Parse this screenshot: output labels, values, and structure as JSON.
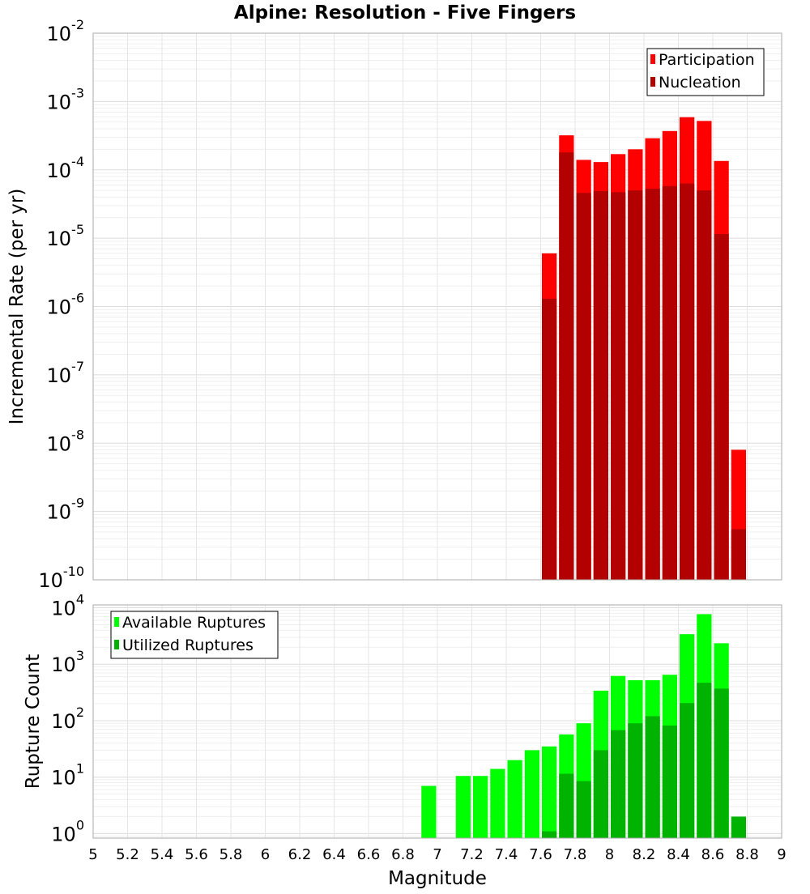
{
  "title": "Alpine: Resolution - Five Fingers",
  "xlabel": "Magnitude",
  "x_ticks": [
    "5",
    "5.2",
    "5.4",
    "5.6",
    "5.8",
    "6",
    "6.2",
    "6.4",
    "6.6",
    "6.8",
    "7",
    "7.2",
    "7.4",
    "7.6",
    "7.8",
    "8",
    "8.2",
    "8.4",
    "8.6",
    "8.8",
    "9"
  ],
  "chart_data": [
    {
      "type": "bar",
      "ylabel": "Incremental Rate (per yr)",
      "yscale": "log",
      "xlim": [
        5,
        9
      ],
      "ylim_exp": [
        -10,
        -2
      ],
      "y_tick_exponents": [
        "-10",
        "-9",
        "-8",
        "-7",
        "-6",
        "-5",
        "-4",
        "-3",
        "-2"
      ],
      "y_tick_base": "10",
      "bin_width": 0.1,
      "legend_position": "top-right",
      "grid": true,
      "categories": [
        7.65,
        7.75,
        7.85,
        7.95,
        8.05,
        8.15,
        8.25,
        8.35,
        8.45,
        8.55,
        8.65,
        8.75
      ],
      "series": [
        {
          "name": "Participation",
          "color": "#ff0000",
          "values": [
            6e-06,
            0.00032,
            0.00014,
            0.00013,
            0.00017,
            0.0002,
            0.00029,
            0.00037,
            0.00059,
            0.00052,
            0.000135,
            8e-09
          ]
        },
        {
          "name": "Nucleation",
          "color": "#b30000",
          "values": [
            1.3e-06,
            0.00018,
            4.6e-05,
            4.9e-05,
            4.7e-05,
            5e-05,
            5.3e-05,
            5.8e-05,
            6.3e-05,
            5e-05,
            1.15e-05,
            5.5e-10
          ]
        }
      ]
    },
    {
      "type": "bar",
      "ylabel": "Rupture Count",
      "yscale": "log",
      "xlim": [
        5,
        9
      ],
      "ylim_exp": [
        -0.08,
        4.05
      ],
      "y_tick_exponents": [
        "0",
        "1",
        "2",
        "3",
        "4"
      ],
      "y_tick_base": "10",
      "bin_width": 0.1,
      "legend_position": "top-left",
      "grid": true,
      "categories": [
        6.95,
        7.15,
        7.25,
        7.35,
        7.45,
        7.55,
        7.65,
        7.75,
        7.85,
        7.95,
        8.05,
        8.15,
        8.25,
        8.35,
        8.45,
        8.55,
        8.65,
        8.75
      ],
      "series": [
        {
          "name": "Available Ruptures",
          "color": "#00ff00",
          "values": [
            7,
            10.5,
            10.5,
            14,
            20,
            30,
            35,
            57,
            90,
            340,
            620,
            520,
            520,
            650,
            3400,
            7700,
            2350,
            null
          ]
        },
        {
          "name": "Utilized Ruptures",
          "color": "#00b300",
          "values": [
            null,
            null,
            null,
            null,
            null,
            null,
            1.1,
            11.5,
            8.5,
            30,
            68,
            90,
            120,
            82,
            205,
            470,
            370,
            2
          ]
        }
      ]
    }
  ]
}
